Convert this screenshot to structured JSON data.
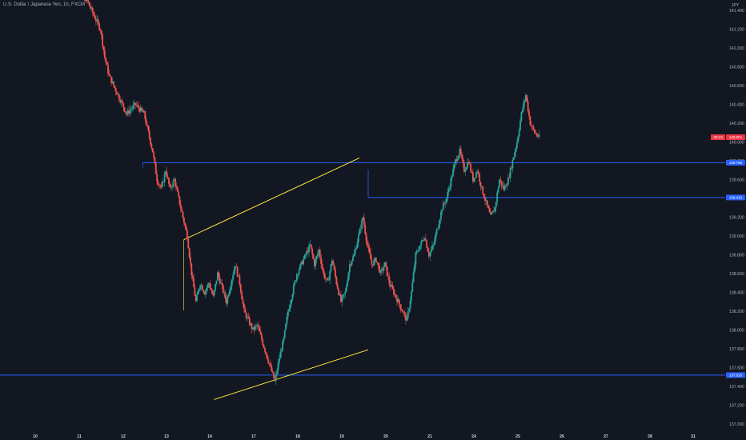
{
  "header": {
    "symbol": "U.S. Dollar / Japanese Yen, 1h, FXCM",
    "currency": "JPY"
  },
  "colors": {
    "background": "#131722",
    "up": "#26a69a",
    "down": "#ef5350",
    "level": "#2962ff",
    "channel": "#ffeb3b",
    "axis_text": "#b2b5be",
    "price_tag": "#f23645"
  },
  "chart_data": {
    "type": "candlestick",
    "title": "U.S. Dollar / Japanese Yen, 1h, FXCM",
    "ylabel": "JPY",
    "ylim": [
      136.95,
      141.52
    ],
    "grid": false,
    "y_ticks": [
      "141.400",
      "141.200",
      "141.000",
      "140.800",
      "140.600",
      "140.400",
      "140.200",
      "140.000",
      "139.800",
      "139.600",
      "139.400",
      "139.200",
      "139.000",
      "138.800",
      "138.600",
      "138.400",
      "138.200",
      "138.000",
      "137.800",
      "137.600",
      "137.400",
      "137.200",
      "137.000"
    ],
    "x_ticks": [
      "10",
      "11",
      "12",
      "13",
      "14",
      "17",
      "18",
      "19",
      "20",
      "21",
      "24",
      "25",
      "26",
      "27",
      "28",
      "31"
    ],
    "price_path": [
      [
        0,
        141.7
      ],
      [
        2,
        141.6
      ],
      [
        4,
        141.5
      ],
      [
        5,
        141.4
      ],
      [
        6,
        141.3
      ],
      [
        7,
        141.2
      ],
      [
        8,
        140.9
      ],
      [
        9,
        140.7
      ],
      [
        10,
        140.6
      ],
      [
        11,
        140.5
      ],
      [
        12,
        140.4
      ],
      [
        13,
        140.3
      ],
      [
        15,
        140.4
      ],
      [
        17,
        140.3
      ],
      [
        18,
        140.1
      ],
      [
        19,
        139.9
      ],
      [
        20,
        139.6
      ],
      [
        21,
        139.5
      ],
      [
        22,
        139.7
      ],
      [
        23,
        139.5
      ],
      [
        24,
        139.6
      ],
      [
        25,
        139.4
      ],
      [
        26,
        139.2
      ],
      [
        27,
        139.0
      ],
      [
        28,
        138.6
      ],
      [
        29,
        138.3
      ],
      [
        30,
        138.5
      ],
      [
        31,
        138.4
      ],
      [
        32,
        138.5
      ],
      [
        33,
        138.35
      ],
      [
        34,
        138.6
      ],
      [
        35,
        138.45
      ],
      [
        36,
        138.3
      ],
      [
        37,
        138.5
      ],
      [
        38,
        138.7
      ],
      [
        39,
        138.5
      ],
      [
        40,
        138.2
      ],
      [
        41,
        138.1
      ],
      [
        42,
        138.0
      ],
      [
        43,
        138.05
      ],
      [
        44,
        137.9
      ],
      [
        45,
        137.75
      ],
      [
        46,
        137.6
      ],
      [
        47,
        137.45
      ],
      [
        48,
        137.7
      ],
      [
        49,
        137.9
      ],
      [
        50,
        138.2
      ],
      [
        51,
        138.4
      ],
      [
        52,
        138.6
      ],
      [
        53,
        138.7
      ],
      [
        54,
        138.8
      ],
      [
        55,
        138.9
      ],
      [
        56,
        138.7
      ],
      [
        57,
        138.85
      ],
      [
        58,
        138.6
      ],
      [
        59,
        138.5
      ],
      [
        60,
        138.75
      ],
      [
        61,
        138.5
      ],
      [
        62,
        138.3
      ],
      [
        63,
        138.4
      ],
      [
        64,
        138.7
      ],
      [
        65,
        138.8
      ],
      [
        66,
        139.0
      ],
      [
        67,
        139.2
      ],
      [
        68,
        138.9
      ],
      [
        69,
        138.7
      ],
      [
        70,
        138.75
      ],
      [
        71,
        138.6
      ],
      [
        72,
        138.7
      ],
      [
        73,
        138.5
      ],
      [
        74,
        138.4
      ],
      [
        75,
        138.3
      ],
      [
        76,
        138.2
      ],
      [
        77,
        138.1
      ],
      [
        78,
        138.4
      ],
      [
        79,
        138.8
      ],
      [
        80,
        138.9
      ],
      [
        81,
        139.0
      ],
      [
        82,
        138.8
      ],
      [
        83,
        138.9
      ],
      [
        84,
        139.1
      ],
      [
        85,
        139.3
      ],
      [
        86,
        139.4
      ],
      [
        87,
        139.6
      ],
      [
        88,
        139.8
      ],
      [
        89,
        139.9
      ],
      [
        90,
        139.7
      ],
      [
        91,
        139.8
      ],
      [
        92,
        139.6
      ],
      [
        93,
        139.7
      ],
      [
        94,
        139.5
      ],
      [
        95,
        139.35
      ],
      [
        96,
        139.2
      ],
      [
        97,
        139.3
      ],
      [
        98,
        139.6
      ],
      [
        99,
        139.5
      ],
      [
        100,
        139.6
      ],
      [
        101,
        139.8
      ],
      [
        102,
        140.0
      ],
      [
        103,
        140.3
      ],
      [
        104,
        140.5
      ],
      [
        105,
        140.2
      ],
      [
        106,
        140.1
      ],
      [
        107,
        140.05
      ]
    ],
    "levels": [
      {
        "price": 139.78,
        "label": "139.780"
      },
      {
        "price": 139.41,
        "label": "139.410"
      },
      {
        "price": 137.52,
        "label": "137.520"
      }
    ],
    "channel": {
      "upper": [
        [
          13.4,
          138.96
        ],
        [
          19.4,
          139.83
        ]
      ],
      "lower": [
        [
          14.1,
          137.26
        ],
        [
          19.6,
          137.79
        ]
      ]
    },
    "last_price": {
      "value": 140.051,
      "label": "140.051",
      "countdown": "40:13"
    }
  }
}
